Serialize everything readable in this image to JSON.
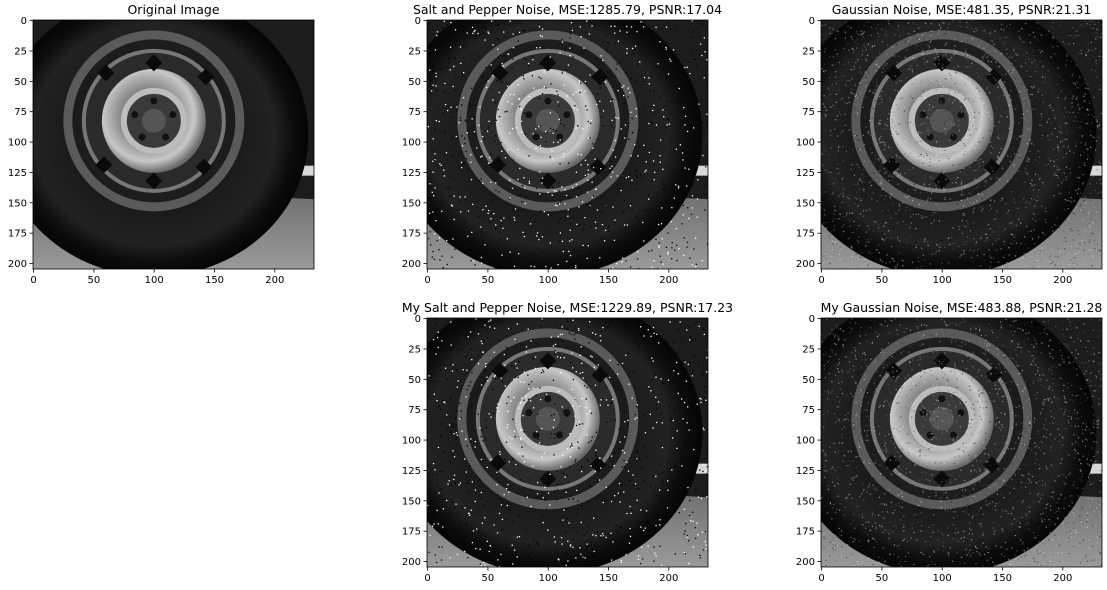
{
  "chart_data": [
    {
      "type": "image",
      "title": "Original Image",
      "noise": "none",
      "image_shape": [
        205,
        233
      ],
      "xticks": [
        0,
        50,
        100,
        150,
        200
      ],
      "yticks": [
        0,
        25,
        50,
        75,
        100,
        125,
        150,
        175,
        200
      ],
      "xlim": [
        -0.5,
        232.5
      ],
      "ylim": [
        204.5,
        -0.5
      ],
      "colormap": "gray"
    },
    {
      "type": "image",
      "title": "Salt and Pepper Noise, MSE:1285.79, PSNR:17.04",
      "noise": "salt_pepper",
      "mse": 1285.79,
      "psnr": 17.04,
      "image_shape": [
        205,
        233
      ],
      "xticks": [
        0,
        50,
        100,
        150,
        200
      ],
      "yticks": [
        0,
        25,
        50,
        75,
        100,
        125,
        150,
        175,
        200
      ],
      "xlim": [
        -0.5,
        232.5
      ],
      "ylim": [
        204.5,
        -0.5
      ],
      "colormap": "gray"
    },
    {
      "type": "image",
      "title": "Gaussian Noise, MSE:481.35, PSNR:21.31",
      "noise": "gaussian",
      "mse": 481.35,
      "psnr": 21.31,
      "image_shape": [
        205,
        233
      ],
      "xticks": [
        0,
        50,
        100,
        150,
        200
      ],
      "yticks": [
        0,
        25,
        50,
        75,
        100,
        125,
        150,
        175,
        200
      ],
      "xlim": [
        -0.5,
        232.5
      ],
      "ylim": [
        204.5,
        -0.5
      ],
      "colormap": "gray"
    },
    {
      "type": "image",
      "title": "My Salt and Pepper Noise, MSE:1229.89, PSNR:17.23",
      "noise": "salt_pepper",
      "mse": 1229.89,
      "psnr": 17.23,
      "image_shape": [
        205,
        233
      ],
      "xticks": [
        0,
        50,
        100,
        150,
        200
      ],
      "yticks": [
        0,
        25,
        50,
        75,
        100,
        125,
        150,
        175,
        200
      ],
      "xlim": [
        -0.5,
        232.5
      ],
      "ylim": [
        204.5,
        -0.5
      ],
      "colormap": "gray"
    },
    {
      "type": "image",
      "title": "My Gaussian Noise, MSE:483.88, PSNR:21.28",
      "noise": "gaussian",
      "mse": 483.88,
      "psnr": 21.28,
      "image_shape": [
        205,
        233
      ],
      "xticks": [
        0,
        50,
        100,
        150,
        200
      ],
      "yticks": [
        0,
        25,
        50,
        75,
        100,
        125,
        150,
        175,
        200
      ],
      "xlim": [
        -0.5,
        232.5
      ],
      "ylim": [
        204.5,
        -0.5
      ],
      "colormap": "gray"
    }
  ]
}
